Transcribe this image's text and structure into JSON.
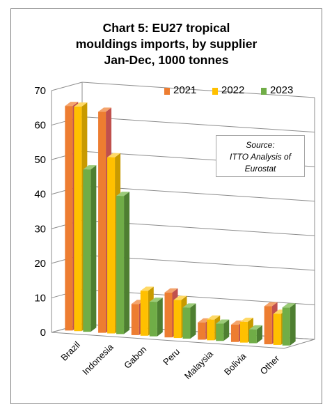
{
  "chart_data": {
    "type": "bar",
    "title_lines": [
      "Chart 5: EU27 tropical",
      "mouldings imports, by supplier",
      "Jan-Dec, 1000 tonnes"
    ],
    "categories": [
      "Brazil",
      "Indonesia",
      "Gabon",
      "Peru",
      "Malaysia",
      "Bolivia",
      "Other"
    ],
    "series": [
      {
        "name": "2021",
        "values": [
          65,
          64,
          9,
          13,
          5,
          5,
          11
        ],
        "color": "#ED7D31"
      },
      {
        "name": "2022",
        "values": [
          65,
          51,
          13,
          11,
          6,
          6,
          9
        ],
        "color": "#FFC000"
      },
      {
        "name": "2023",
        "values": [
          47,
          40,
          10,
          9,
          5,
          4,
          11
        ],
        "color": "#70AD47"
      }
    ],
    "ylim": [
      0,
      70
    ],
    "yticks": [
      0,
      10,
      20,
      30,
      40,
      50,
      60,
      70
    ],
    "grid": true,
    "legend_position": "top-right",
    "annotation": [
      "Source:",
      "ITTO Analysis of",
      "Eurostat"
    ]
  }
}
